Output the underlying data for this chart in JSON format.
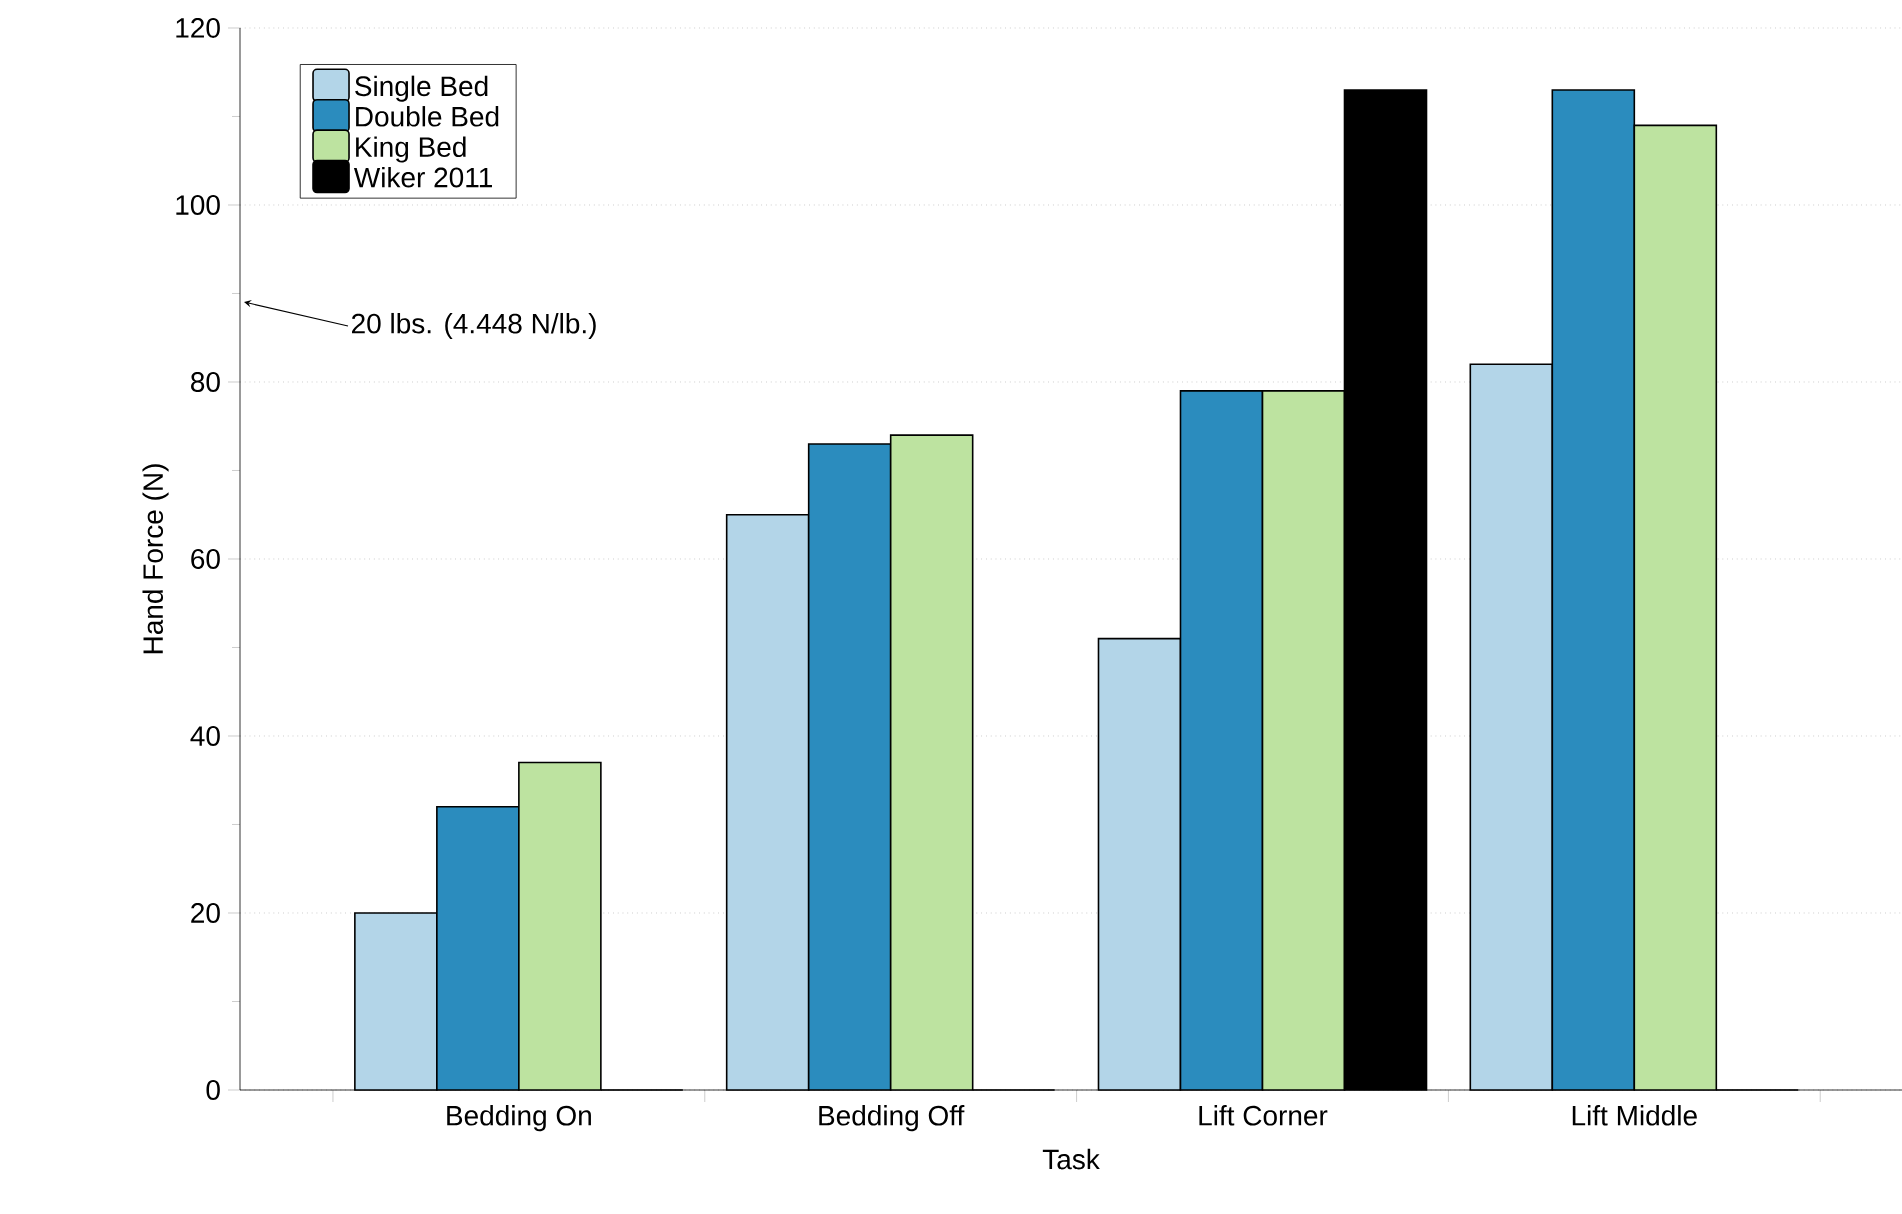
{
  "chart_data": {
    "type": "bar",
    "xlabel": "Task",
    "ylabel": "Hand Force (N)",
    "categories": [
      "Bedding On",
      "Bedding Off",
      "Lift Corner",
      "Lift Middle"
    ],
    "series": [
      {
        "name": "Single Bed",
        "color": "#b3d5e8",
        "values": [
          20,
          65,
          51,
          82
        ]
      },
      {
        "name": "Double Bed",
        "color": "#2b8cbe",
        "values": [
          32,
          73,
          79,
          113
        ]
      },
      {
        "name": "King Bed",
        "color": "#bde3a0",
        "values": [
          37,
          74,
          79,
          109
        ]
      },
      {
        "name": "Wiker 2011",
        "color": "#000000",
        "values": [
          0,
          0,
          113,
          0
        ]
      }
    ],
    "ylim": [
      0,
      120
    ],
    "yticks": [
      0,
      20,
      40,
      60,
      80,
      100,
      120
    ],
    "grid": "y",
    "legend": "top left",
    "annotations": [
      "20 lbs. (4.448 N/lb.)"
    ]
  }
}
